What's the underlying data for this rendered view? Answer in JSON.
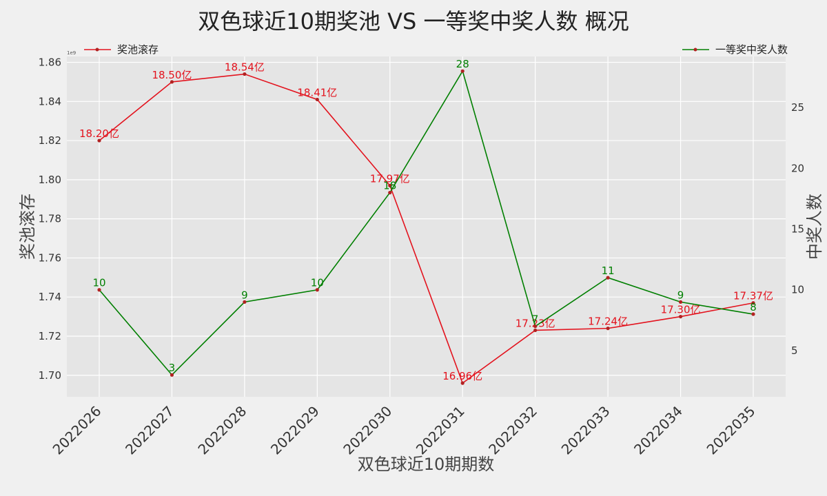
{
  "chart_data": {
    "type": "line",
    "title": "双色球近10期奖池 VS 一等奖中奖人数 概况",
    "xlabel": "双色球近10期期数",
    "ylabel": "奖池滚存",
    "y2label": "中奖人数",
    "y_offset_label": "1e9",
    "categories": [
      "2022026",
      "2022027",
      "2022028",
      "2022029",
      "2022030",
      "2022031",
      "2022032",
      "2022033",
      "2022034",
      "2022035"
    ],
    "ylim": [
      1.689,
      1.863
    ],
    "y_ticks": [
      "1.70",
      "1.72",
      "1.74",
      "1.76",
      "1.78",
      "1.80",
      "1.82",
      "1.84",
      "1.86"
    ],
    "y2lim": [
      1.2,
      29.2
    ],
    "y2_ticks": [
      "5",
      "10",
      "15",
      "20",
      "25"
    ],
    "grid": true,
    "legend_placement": "top-left / top-right",
    "series": [
      {
        "name": "奖池滚存",
        "axis": "left",
        "color": "#e3121d",
        "values": [
          1.82,
          1.85,
          1.854,
          1.841,
          1.797,
          1.696,
          1.723,
          1.724,
          1.73,
          1.737
        ],
        "labels": [
          "18.20亿",
          "18.50亿",
          "18.54亿",
          "18.41亿",
          "17.97亿",
          "16.96亿",
          "17.23亿",
          "17.24亿",
          "17.30亿",
          "17.37亿"
        ]
      },
      {
        "name": "一等奖中奖人数",
        "axis": "right",
        "color": "#007f00",
        "values": [
          10,
          3,
          9,
          10,
          18,
          28,
          7,
          11,
          9,
          8
        ],
        "labels": [
          "10",
          "3",
          "9",
          "10",
          "18",
          "28",
          "7",
          "11",
          "9",
          "8"
        ]
      }
    ]
  }
}
